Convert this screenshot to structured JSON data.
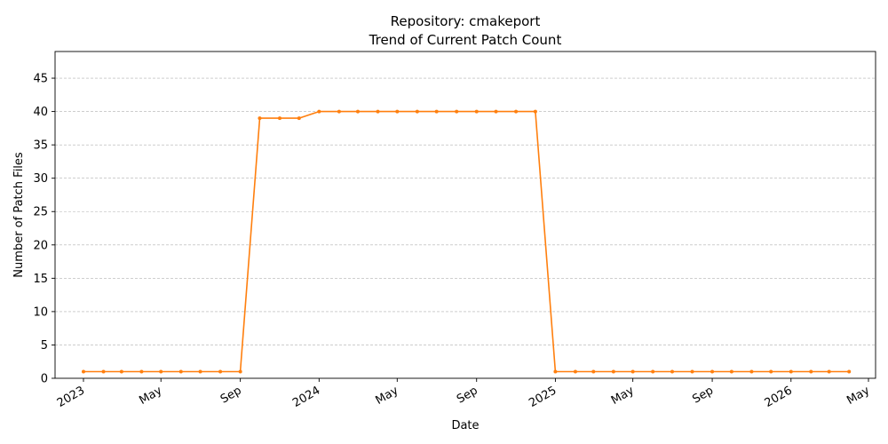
{
  "chart_data": {
    "type": "line",
    "title": "Repository: cmakeport",
    "subtitle": "Trend of Current Patch Count",
    "xlabel": "Date",
    "ylabel": "Number of Patch Files",
    "ylim": [
      0,
      49
    ],
    "yticks": [
      0,
      5,
      10,
      15,
      20,
      25,
      30,
      35,
      40,
      45
    ],
    "xlim": [
      "2022-11-18",
      "2026-05-12"
    ],
    "xticks": [
      {
        "date": "2023-01-01",
        "label": "2023"
      },
      {
        "date": "2023-05-01",
        "label": "May"
      },
      {
        "date": "2023-09-01",
        "label": "Sep"
      },
      {
        "date": "2024-01-01",
        "label": "2024"
      },
      {
        "date": "2024-05-01",
        "label": "May"
      },
      {
        "date": "2024-09-01",
        "label": "Sep"
      },
      {
        "date": "2025-01-01",
        "label": "2025"
      },
      {
        "date": "2025-05-01",
        "label": "May"
      },
      {
        "date": "2025-09-01",
        "label": "Sep"
      },
      {
        "date": "2026-01-01",
        "label": "2026"
      },
      {
        "date": "2026-05-01",
        "label": "May"
      }
    ],
    "grid": {
      "y": true,
      "x": false
    },
    "legend": "none",
    "series": [
      {
        "color": "#ff7f0e",
        "x": [
          "2023-01-01",
          "2023-02-01",
          "2023-03-01",
          "2023-04-01",
          "2023-05-01",
          "2023-06-01",
          "2023-07-01",
          "2023-08-01",
          "2023-09-01",
          "2023-10-01",
          "2023-11-01",
          "2023-12-01",
          "2024-01-01",
          "2024-02-01",
          "2024-03-01",
          "2024-04-01",
          "2024-05-01",
          "2024-06-01",
          "2024-07-01",
          "2024-08-01",
          "2024-09-01",
          "2024-10-01",
          "2024-11-01",
          "2024-12-01",
          "2025-01-01",
          "2025-02-01",
          "2025-03-01",
          "2025-04-01",
          "2025-05-01",
          "2025-06-01",
          "2025-07-01",
          "2025-08-01",
          "2025-09-01",
          "2025-10-01",
          "2025-11-01",
          "2025-12-01",
          "2026-01-01",
          "2026-02-01",
          "2026-03-01",
          "2026-04-01"
        ],
        "values": [
          1,
          1,
          1,
          1,
          1,
          1,
          1,
          1,
          1,
          39,
          39,
          39,
          40,
          40,
          40,
          40,
          40,
          40,
          40,
          40,
          40,
          40,
          40,
          40,
          1,
          1,
          1,
          1,
          1,
          1,
          1,
          1,
          1,
          1,
          1,
          1,
          1,
          1,
          1,
          1
        ]
      }
    ]
  }
}
